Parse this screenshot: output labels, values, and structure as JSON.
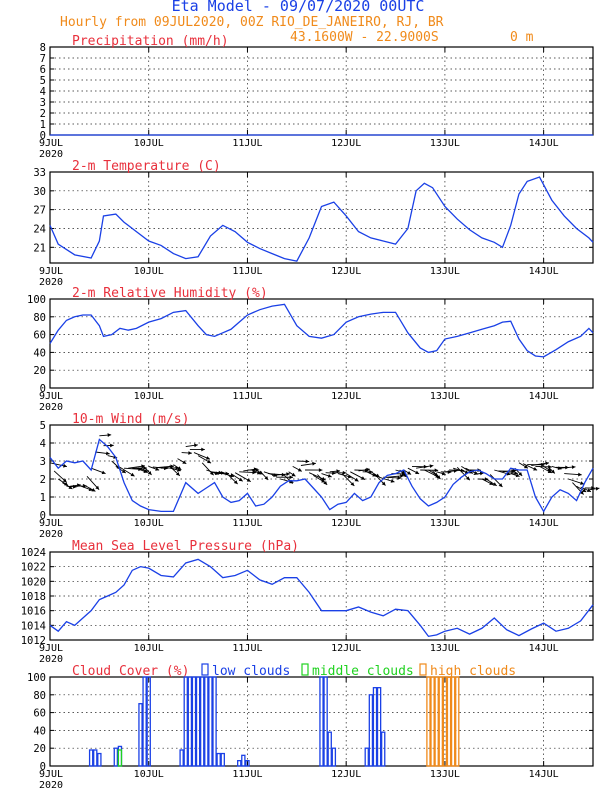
{
  "header": {
    "title": "Eta Model - 09/07/2020 00UTC",
    "subtitle": "Hourly from 09JUL2020, 00Z  RIO_DE_JANEIRO, RJ, BR",
    "coords": "43.1600W - 22.9000S",
    "elevation": "0 m"
  },
  "colors": {
    "title": "#1a40e6",
    "subtitle": "#f08a1a",
    "panel_title": "#e8303c",
    "series": "#1a40e6",
    "low_clouds": "#1a40e6",
    "middle_clouds": "#1fd21f",
    "high_clouds": "#f08a1a"
  },
  "x_axis": {
    "tick_labels": [
      "9JUL",
      "10JUL",
      "11JUL",
      "12JUL",
      "13JUL",
      "14JUL"
    ],
    "first_tick_year": "2020",
    "tick_hours": [
      0,
      24,
      48,
      72,
      96,
      120
    ],
    "range_hours": [
      0,
      132
    ]
  },
  "chart_data": [
    {
      "id": "precip",
      "type": "line",
      "title": "Precipitation (mm/h)",
      "ylim": [
        0,
        8
      ],
      "yticks": [
        0,
        1,
        2,
        3,
        4,
        5,
        6,
        7,
        8
      ],
      "grid": true,
      "x": [
        0,
        132
      ],
      "series": [
        {
          "name": "precip",
          "values": [
            0,
            0
          ]
        }
      ]
    },
    {
      "id": "temp",
      "type": "line",
      "title": "2-m Temperature (C)",
      "ylim": [
        18.5,
        33
      ],
      "yticks": [
        21,
        24,
        27,
        30,
        33
      ],
      "grid": true,
      "x": [
        0,
        2,
        6,
        10,
        12,
        13,
        16,
        18,
        21,
        24,
        27,
        30,
        33,
        36,
        39,
        42,
        45,
        48,
        51,
        54,
        57,
        60,
        63,
        66,
        69,
        72,
        75,
        78,
        81,
        84,
        87,
        89,
        91,
        93,
        96,
        99,
        102,
        105,
        108,
        110,
        112,
        114,
        116,
        119,
        122,
        125,
        128,
        131,
        132
      ],
      "series": [
        {
          "name": "temperature",
          "values": [
            24.5,
            21.5,
            19.8,
            19.3,
            22,
            26,
            26.3,
            25,
            23.5,
            22,
            21.3,
            20,
            19.2,
            19.5,
            22.8,
            24.5,
            23.5,
            21.8,
            20.8,
            20,
            19.2,
            18.8,
            22.5,
            27.5,
            28.2,
            26,
            23.5,
            22.5,
            22,
            21.5,
            24,
            30,
            31.2,
            30.5,
            27.5,
            25.5,
            23.8,
            22.5,
            21.8,
            21,
            24.5,
            29.5,
            31.5,
            32.2,
            28.5,
            26,
            24,
            22.5,
            21.8
          ]
        }
      ]
    },
    {
      "id": "rh",
      "type": "line",
      "title": "2-m Relative Humidity (%)",
      "ylim": [
        0,
        100
      ],
      "yticks": [
        0,
        20,
        40,
        60,
        80,
        100
      ],
      "grid": true,
      "x": [
        0,
        2,
        4,
        6,
        8,
        10,
        12,
        13,
        15,
        17,
        19,
        21,
        24,
        27,
        30,
        33,
        36,
        38,
        40,
        42,
        44,
        46,
        48,
        51,
        54,
        57,
        60,
        63,
        66,
        69,
        72,
        75,
        78,
        81,
        84,
        87,
        90,
        92,
        94,
        96,
        99,
        102,
        105,
        108,
        110,
        112,
        114,
        116,
        118,
        120,
        123,
        126,
        129,
        131,
        132
      ],
      "series": [
        {
          "name": "humidity",
          "values": [
            50,
            65,
            76,
            80,
            82,
            82,
            70,
            58,
            60,
            67,
            65,
            67,
            74,
            78,
            85,
            87,
            70,
            60,
            58,
            62,
            66,
            74,
            82,
            88,
            92,
            94,
            70,
            58,
            56,
            60,
            74,
            80,
            83,
            85,
            85,
            62,
            45,
            40,
            42,
            55,
            58,
            62,
            66,
            70,
            74,
            75,
            55,
            42,
            36,
            35,
            43,
            52,
            58,
            67,
            62
          ]
        }
      ]
    },
    {
      "id": "wind",
      "type": "line",
      "title": "10-m Wind (m/s)",
      "ylim": [
        0,
        5
      ],
      "yticks": [
        0,
        1,
        2,
        3,
        4,
        5
      ],
      "grid": true,
      "x": [
        0,
        2,
        4,
        6,
        8,
        10,
        12,
        14,
        16,
        18,
        20,
        22,
        24,
        27,
        30,
        33,
        36,
        38,
        40,
        42,
        44,
        46,
        48,
        50,
        52,
        54,
        56,
        58,
        60,
        62,
        64,
        66,
        68,
        70,
        72,
        74,
        76,
        78,
        80,
        82,
        84,
        86,
        88,
        90,
        92,
        94,
        96,
        98,
        100,
        102,
        104,
        106,
        108,
        110,
        112,
        114,
        116,
        118,
        120,
        122,
        124,
        126,
        128,
        130,
        132
      ],
      "series": [
        {
          "name": "speed",
          "values": [
            3.2,
            2.6,
            3.0,
            2.9,
            3.0,
            2.5,
            4.2,
            3.8,
            3.2,
            1.8,
            0.8,
            0.5,
            0.3,
            0.2,
            0.2,
            1.8,
            1.2,
            1.5,
            1.8,
            1.0,
            0.7,
            0.8,
            1.2,
            0.5,
            0.6,
            1.0,
            1.6,
            1.9,
            1.9,
            2.0,
            1.5,
            1.0,
            0.3,
            0.6,
            0.7,
            1.2,
            0.8,
            1.0,
            1.8,
            2.2,
            2.3,
            2.5,
            1.6,
            0.9,
            0.5,
            0.7,
            1.0,
            1.7,
            2.1,
            2.4,
            2.5,
            2.3,
            2.0,
            2.0,
            2.6,
            2.5,
            2.5,
            1.0,
            0.2,
            1.0,
            1.4,
            1.2,
            0.8,
            1.8,
            2.6
          ]
        },
        {
          "name": "vectors-envelope",
          "values": [
            2.9,
            2.0,
            1.6,
            1.6,
            1.7,
            2.6,
            4.4,
            3.3,
            2.7,
            2.6,
            2.6,
            2.6,
            2.7,
            2.6,
            2.8,
            3.8,
            3.3,
            2.5,
            2.3,
            2.3,
            2.3,
            2.4,
            2.5,
            2.5,
            2.4,
            2.2,
            2.0,
            2.4,
            3.0,
            2.5,
            2.2,
            2.3,
            2.4,
            2.3,
            2.3,
            2.5,
            2.4,
            2.4,
            2.1,
            2.1,
            2.5,
            2.5,
            2.7,
            2.5,
            2.5,
            2.4,
            2.4,
            2.6,
            2.7,
            2.5,
            2.0,
            2.0,
            2.5,
            2.4,
            2.3,
            2.9,
            2.8,
            2.7,
            2.7,
            2.7,
            2.6,
            2.0,
            1.6,
            1.5,
            1.3
          ]
        }
      ]
    },
    {
      "id": "mslp",
      "type": "line",
      "title": "Mean Sea Level Pressure (hPa)",
      "ylim": [
        1012,
        1024
      ],
      "yticks": [
        1012,
        1014,
        1016,
        1018,
        1020,
        1022,
        1024
      ],
      "grid": true,
      "x": [
        0,
        2,
        4,
        6,
        8,
        10,
        12,
        14,
        16,
        18,
        20,
        22,
        24,
        27,
        30,
        33,
        36,
        39,
        42,
        45,
        48,
        51,
        54,
        57,
        60,
        63,
        66,
        69,
        72,
        75,
        78,
        81,
        84,
        87,
        90,
        92,
        94,
        96,
        99,
        102,
        105,
        108,
        111,
        114,
        117,
        120,
        123,
        126,
        129,
        132
      ],
      "series": [
        {
          "name": "pressure",
          "values": [
            1014.0,
            1013.2,
            1014.5,
            1014.0,
            1015.0,
            1016.0,
            1017.5,
            1018.0,
            1018.5,
            1019.5,
            1021.5,
            1022.0,
            1021.8,
            1020.8,
            1020.6,
            1022.5,
            1023.0,
            1022.0,
            1020.5,
            1020.8,
            1021.5,
            1020.2,
            1019.6,
            1020.5,
            1020.5,
            1018.5,
            1016.0,
            1016.0,
            1016.0,
            1016.5,
            1015.8,
            1015.3,
            1016.2,
            1016.0,
            1014.0,
            1012.5,
            1012.7,
            1013.2,
            1013.6,
            1012.8,
            1013.6,
            1015.0,
            1013.4,
            1012.6,
            1013.5,
            1014.3,
            1013.2,
            1013.6,
            1014.6,
            1016.8
          ]
        }
      ]
    },
    {
      "id": "cloud",
      "type": "bar",
      "title": "Cloud Cover (%)",
      "ylim": [
        0,
        100
      ],
      "yticks": [
        0,
        20,
        40,
        60,
        80,
        100
      ],
      "grid": true,
      "legend": [
        "low clouds",
        "middle clouds",
        "high clouds"
      ],
      "series": [
        {
          "name": "low clouds",
          "hours": [
            10,
            11,
            12,
            16,
            17,
            22,
            23,
            24,
            32,
            33,
            34,
            35,
            36,
            37,
            38,
            39,
            40,
            41,
            42,
            46,
            47,
            48,
            66,
            67,
            68,
            69,
            77,
            78,
            79,
            80,
            81
          ],
          "values": [
            18,
            18,
            14,
            20,
            22,
            70,
            100,
            100,
            18,
            100,
            100,
            100,
            100,
            100,
            100,
            100,
            100,
            14,
            14,
            6,
            12,
            6,
            100,
            100,
            38,
            20,
            20,
            80,
            88,
            88,
            38
          ]
        },
        {
          "name": "middle clouds",
          "hours": [
            17
          ],
          "values": [
            18
          ]
        },
        {
          "name": "high clouds",
          "hours": [
            92,
            93,
            94,
            95,
            96,
            97,
            98,
            99
          ],
          "values": [
            100,
            100,
            100,
            100,
            100,
            100,
            100,
            100
          ]
        }
      ]
    }
  ]
}
